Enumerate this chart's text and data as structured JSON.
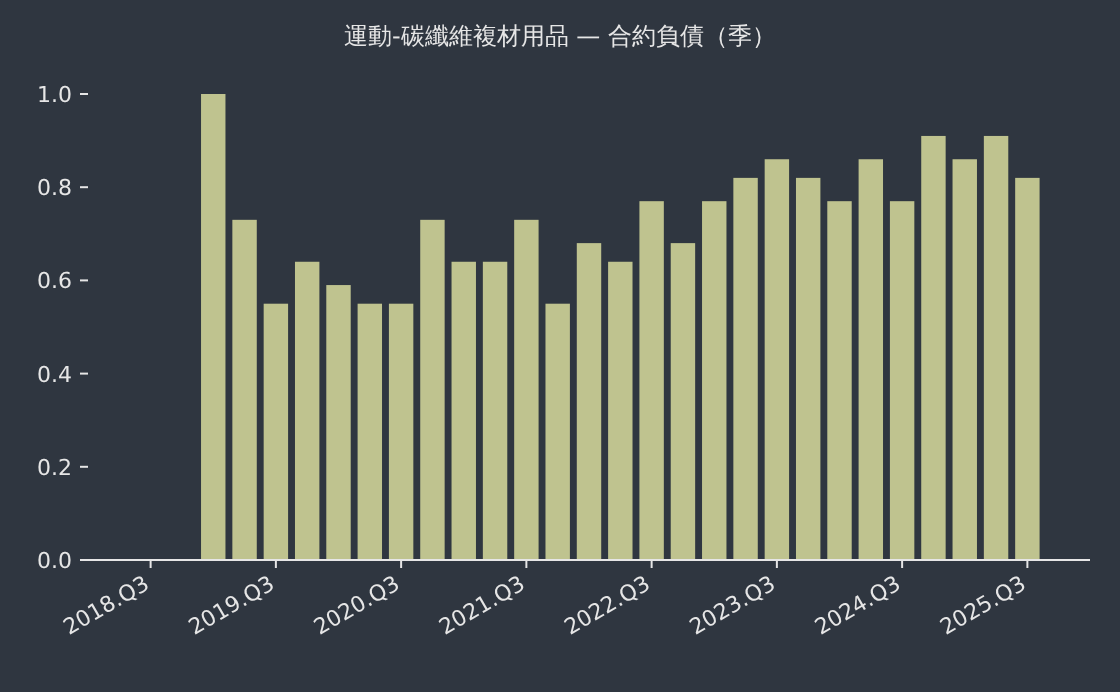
{
  "chart_data": {
    "type": "bar",
    "title": "運動-碳纖維複材用品 — 合約負債（季）",
    "categories": [
      "2018.Q3",
      null,
      null,
      null,
      "2019.Q3",
      null,
      null,
      null,
      "2020.Q3",
      null,
      null,
      null,
      "2021.Q3",
      null,
      null,
      null,
      "2022.Q3",
      null,
      null,
      null,
      "2023.Q3",
      null,
      null,
      null,
      "2024.Q3",
      null,
      null,
      null,
      "2025.Q3"
    ],
    "values": [
      null,
      null,
      1.0,
      0.73,
      0.55,
      0.64,
      0.59,
      0.55,
      0.55,
      0.73,
      0.64,
      0.64,
      0.73,
      0.55,
      0.68,
      0.64,
      0.77,
      0.68,
      0.77,
      0.82,
      0.86,
      0.82,
      0.77,
      0.86,
      0.77,
      0.91,
      0.86,
      0.91,
      0.82
    ],
    "color": "#bfc38f",
    "ylim": [
      0,
      1.0
    ],
    "yticks": [
      {
        "value": 0,
        "label": "0.0"
      },
      {
        "value": 0.2,
        "label": "0.2"
      },
      {
        "value": 0.4,
        "label": "0.4"
      },
      {
        "value": 0.6,
        "label": "0.6"
      },
      {
        "value": 0.8,
        "label": "0.8"
      },
      {
        "value": 1.0,
        "label": "1.0"
      }
    ]
  }
}
